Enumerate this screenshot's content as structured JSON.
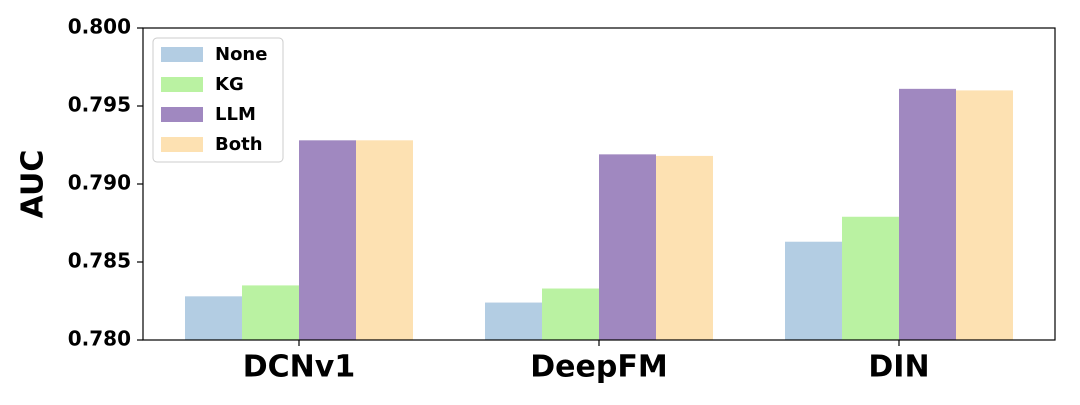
{
  "chart_data": {
    "type": "bar",
    "y_label": "AUC",
    "categories": [
      "DCNv1",
      "DeepFM",
      "DIN"
    ],
    "series": [
      {
        "name": "None",
        "color": "#b3cde3",
        "values": [
          0.7828,
          0.7824,
          0.7863
        ]
      },
      {
        "name": "KG",
        "color": "#baf2a2",
        "values": [
          0.7835,
          0.7833,
          0.7879
        ]
      },
      {
        "name": "LLM",
        "color": "#a088c0",
        "values": [
          0.7928,
          0.7919,
          0.7961
        ]
      },
      {
        "name": "Both",
        "color": "#fde1b2",
        "values": [
          0.7928,
          0.7918,
          0.796
        ]
      }
    ],
    "ylim": [
      0.78,
      0.8
    ],
    "yticks": [
      {
        "value": 0.78,
        "label": "0.780"
      },
      0.785,
      {
        "value": 0.79,
        "label": "0.790"
      },
      0.795,
      {
        "value": 0.8,
        "label": "0.800"
      }
    ],
    "legend": "upper left"
  }
}
